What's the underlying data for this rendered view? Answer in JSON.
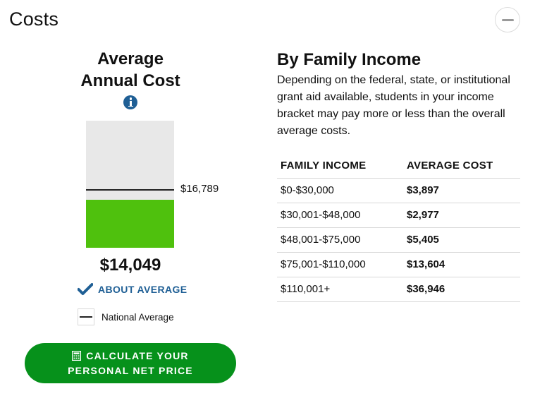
{
  "section": {
    "title": "Costs",
    "collapse_icon": "minus-circle-icon"
  },
  "average_cost": {
    "title_line1": "Average",
    "title_line2": "Annual Cost",
    "info_icon": "info-icon",
    "value_label": "$14,049",
    "value": 14049,
    "national_average_label": "$16,789",
    "national_average": 16789,
    "scale_max": 37000,
    "status_icon": "checkmark-icon",
    "status_text": "ABOUT AVERAGE",
    "legend_label": "National Average",
    "colors": {
      "fill": "#4fc10d",
      "background": "#e8e8e8",
      "status": "#1f5f95"
    }
  },
  "cta": {
    "icon": "calculator-icon",
    "line1": "CALCULATE YOUR",
    "line2": "PERSONAL NET PRICE",
    "color": "#06911b"
  },
  "by_income": {
    "title": "By Family Income",
    "description": "Depending on the federal, state, or institutional grant aid available, students in your income bracket may pay more or less than the overall average costs.",
    "headers": [
      "FAMILY INCOME",
      "AVERAGE COST"
    ],
    "rows": [
      {
        "income": "$0-$30,000",
        "cost": "$3,897"
      },
      {
        "income": "$30,001-$48,000",
        "cost": "$2,977"
      },
      {
        "income": "$48,001-$75,000",
        "cost": "$5,405"
      },
      {
        "income": "$75,001-$110,000",
        "cost": "$13,604"
      },
      {
        "income": "$110,001+",
        "cost": "$36,946"
      }
    ]
  }
}
